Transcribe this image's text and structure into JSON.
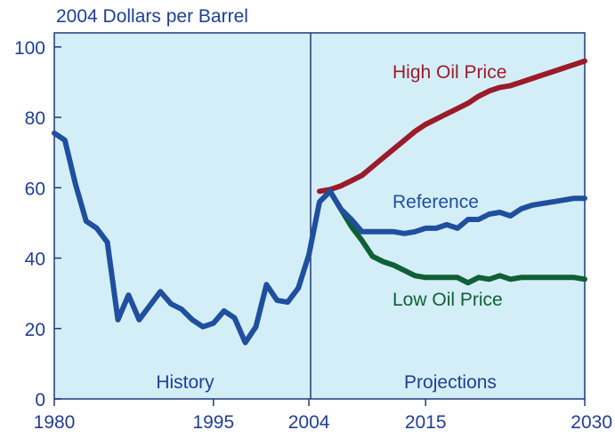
{
  "chart_data": {
    "type": "line",
    "ylabel": "2004 Dollars per Barrel",
    "ylim": [
      0,
      104
    ],
    "xlim": [
      1980,
      2030
    ],
    "y_ticks": [
      0,
      20,
      40,
      60,
      80,
      100
    ],
    "y_tick_labels": [
      "0",
      "20",
      "40",
      "60",
      "80",
      "100"
    ],
    "x_ticks": [
      1980,
      1995,
      2004,
      2015,
      2030
    ],
    "x_tick_labels": [
      "1980",
      "1995",
      "2004",
      "2015",
      "2030"
    ],
    "grid": false,
    "regions": [
      {
        "label": "History",
        "from": 1980,
        "to": 2004
      },
      {
        "label": "Projections",
        "from": 2004,
        "to": 2030
      }
    ],
    "colors": {
      "panel_fill": "#d4eef7",
      "axis": "#1f3a7a",
      "label_text": "#1f3f94",
      "history": "#1f4f9e",
      "reference": "#1f4f9e",
      "high": "#9b1b2a",
      "low": "#0f6035"
    },
    "series": [
      {
        "name": "High Oil Price",
        "color_key": "high",
        "x": [
          2005,
          2006,
          2007,
          2008,
          2009,
          2010,
          2011,
          2012,
          2013,
          2014,
          2015,
          2016,
          2017,
          2018,
          2019,
          2020,
          2021,
          2022,
          2023,
          2024,
          2025,
          2026,
          2027,
          2028,
          2029,
          2030
        ],
        "values": [
          59,
          59.5,
          60.5,
          62,
          63.5,
          66,
          68.5,
          71,
          73.5,
          76,
          78,
          79.5,
          81,
          82.5,
          84,
          86,
          87.5,
          88.5,
          89,
          90,
          91,
          92,
          93,
          94,
          95,
          96
        ]
      },
      {
        "name": "Reference",
        "color_key": "reference",
        "x": [
          1980,
          1981,
          1982,
          1983,
          1984,
          1985,
          1986,
          1987,
          1988,
          1989,
          1990,
          1991,
          1992,
          1993,
          1994,
          1995,
          1996,
          1997,
          1998,
          1999,
          2000,
          2001,
          2002,
          2003,
          2004,
          2005,
          2006,
          2007,
          2008,
          2009,
          2010,
          2011,
          2012,
          2013,
          2014,
          2015,
          2016,
          2017,
          2018,
          2019,
          2020,
          2021,
          2022,
          2023,
          2024,
          2025,
          2026,
          2027,
          2028,
          2029,
          2030
        ],
        "values": [
          75.5,
          73.5,
          61,
          50.5,
          48.5,
          44.5,
          22.5,
          29.5,
          22.5,
          26.5,
          30.5,
          27,
          25.5,
          22.5,
          20.5,
          21.5,
          25,
          23,
          16,
          20.5,
          32.5,
          28,
          27.5,
          31.5,
          41,
          56,
          59,
          54,
          51,
          47.5,
          47.5,
          47.5,
          47.5,
          47,
          47.5,
          48.5,
          48.5,
          49.5,
          48.5,
          51,
          51,
          52.5,
          53,
          52,
          54,
          55,
          55.5,
          56,
          56.5,
          57,
          57
        ]
      },
      {
        "name": "Low Oil Price",
        "color_key": "low",
        "x": [
          2006,
          2007,
          2008,
          2009,
          2010,
          2011,
          2012,
          2013,
          2014,
          2015,
          2016,
          2017,
          2018,
          2019,
          2020,
          2021,
          2022,
          2023,
          2024,
          2025,
          2026,
          2027,
          2028,
          2029,
          2030
        ],
        "values": [
          59,
          54,
          49,
          45,
          40.5,
          39,
          38,
          36.5,
          35,
          34.5,
          34.5,
          34.5,
          34.5,
          33,
          34.5,
          34,
          35,
          34,
          34.5,
          34.5,
          34.5,
          34.5,
          34.5,
          34.5,
          34
        ]
      }
    ]
  }
}
